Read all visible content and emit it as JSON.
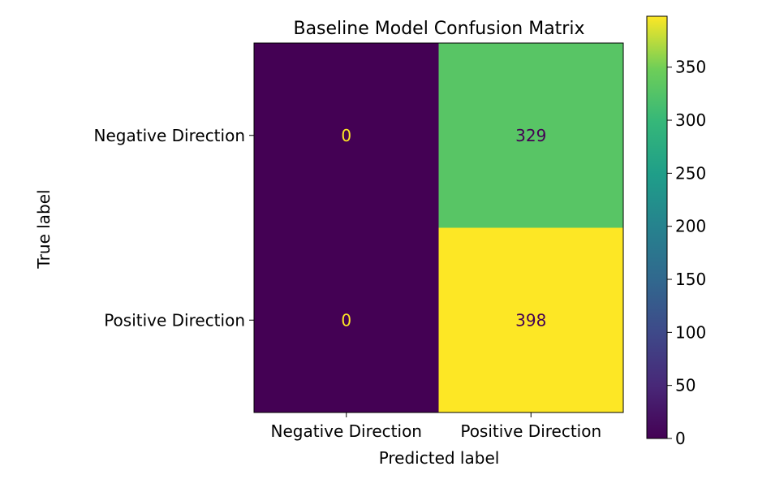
{
  "chart_data": {
    "type": "heatmap",
    "title": "Baseline Model Confusion Matrix",
    "xlabel": "Predicted label",
    "ylabel": "True label",
    "x_categories": [
      "Negative Direction",
      "Positive Direction"
    ],
    "y_categories": [
      "Negative Direction",
      "Positive Direction"
    ],
    "values": [
      [
        0,
        329
      ],
      [
        0,
        398
      ]
    ],
    "colormap": "viridis",
    "colorbar": {
      "range": [
        0,
        398
      ],
      "ticks": [
        0,
        50,
        100,
        150,
        200,
        250,
        300,
        350
      ]
    },
    "cell_text_colors": {
      "dark_cell": "#fde725",
      "light_cell": "#440154"
    }
  }
}
